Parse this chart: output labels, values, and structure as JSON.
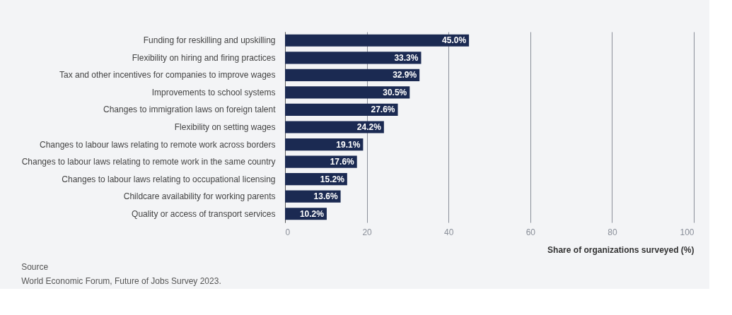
{
  "chart_data": {
    "type": "bar",
    "orientation": "horizontal",
    "categories": [
      "Funding for reskilling and upskilling",
      "Flexibility on hiring and firing practices",
      "Tax and other incentives for companies to improve wages",
      "Improvements to school systems",
      "Changes to immigration laws on foreign talent",
      "Flexibility on setting wages",
      "Changes to labour laws relating to remote work across borders",
      "Changes to labour laws relating to remote work in the same country",
      "Changes to labour laws relating to occupational licensing",
      "Childcare availability for working parents",
      "Quality or access of transport services"
    ],
    "values": [
      45.0,
      33.3,
      32.9,
      30.5,
      27.6,
      24.2,
      19.1,
      17.6,
      15.2,
      13.6,
      10.2
    ],
    "value_labels": [
      "45.0%",
      "33.3%",
      "32.9%",
      "30.5%",
      "27.6%",
      "24.2%",
      "19.1%",
      "17.6%",
      "15.2%",
      "13.6%",
      "10.2%"
    ],
    "color": "#1b2a52",
    "xlim": [
      0,
      100
    ],
    "xticks": [
      0,
      20,
      40,
      60,
      80,
      100
    ],
    "xlabel": "Share of organizations surveyed (%)",
    "grid": "x",
    "annotations": [
      "Source",
      "World Economic Forum, Future of Jobs Survey 2023."
    ]
  }
}
